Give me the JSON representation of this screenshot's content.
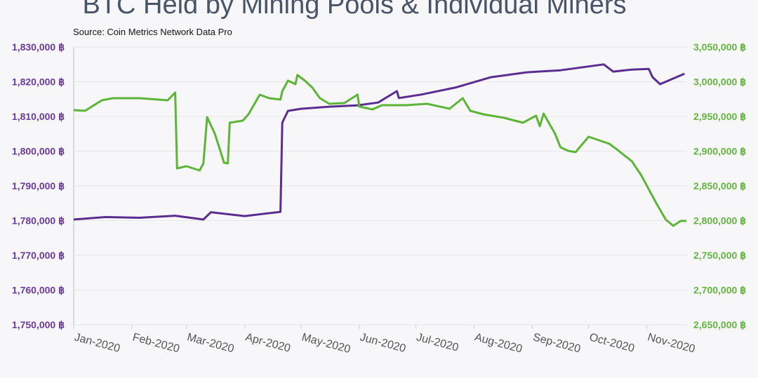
{
  "chart_data": {
    "type": "line",
    "title": "BTC Held by Mining Pools & Individual Miners",
    "subtitle": "Source: Coin Metrics Network Data Pro",
    "x_unit": "day of 2020 (0 = Jan 1)",
    "x_tick_labels": [
      "Jan-2020",
      "Feb-2020",
      "Mar-2020",
      "Apr-2020",
      "May-2020",
      "Jun-2020",
      "Jul-2020",
      "Aug-2020",
      "Sep-2020",
      "Oct-2020",
      "Nov-2020"
    ],
    "x_tick_days": [
      0,
      31,
      60,
      91,
      121,
      152,
      182,
      213,
      244,
      274,
      305
    ],
    "xlim": [
      0,
      326
    ],
    "left_axis": {
      "ylim": [
        1750000,
        1830000
      ],
      "ticks": [
        "1,750,000 ฿",
        "1,760,000 ฿",
        "1,770,000 ฿",
        "1,780,000 ฿",
        "1,790,000 ฿",
        "1,800,000 ฿",
        "1,810,000 ฿",
        "1,820,000 ฿",
        "1,830,000 ฿"
      ],
      "color": "#5b2d91"
    },
    "right_axis": {
      "ylim": [
        2650000,
        3050000
      ],
      "ticks": [
        "2,650,000 ฿",
        "2,700,000 ฿",
        "2,750,000 ฿",
        "2,800,000 ฿",
        "2,850,000 ฿",
        "2,900,000 ฿",
        "2,950,000 ฿",
        "3,000,000 ฿",
        "3,050,000 ฿"
      ],
      "color": "#5cb536"
    },
    "grid": true,
    "series": [
      {
        "name": "Mining Pools",
        "axis": "left",
        "color": "#5b2d91",
        "x": [
          0,
          17,
          35,
          54,
          69,
          73,
          91,
          110,
          111,
          114,
          121,
          136,
          151,
          162,
          172,
          173,
          185,
          203,
          222,
          241,
          259,
          282,
          287,
          297,
          306,
          308,
          312,
          325
        ],
        "y": [
          1780300,
          1781000,
          1780800,
          1781400,
          1780300,
          1782400,
          1781300,
          1782500,
          1808200,
          1811600,
          1812200,
          1812800,
          1813200,
          1814000,
          1817300,
          1815300,
          1816300,
          1818300,
          1821300,
          1822700,
          1823300,
          1825000,
          1822900,
          1823500,
          1823700,
          1821300,
          1819300,
          1822300
        ]
      },
      {
        "name": "Individual Miners",
        "axis": "right",
        "color": "#5cb536",
        "x": [
          0,
          6,
          15,
          21,
          35,
          50,
          54,
          55,
          60,
          67,
          69,
          71,
          75,
          78,
          80,
          82,
          83,
          90,
          93,
          99,
          104,
          110,
          111,
          114,
          118,
          119,
          123,
          127,
          131,
          136,
          144,
          151,
          152,
          159,
          164,
          177,
          188,
          200,
          207,
          211,
          218,
          229,
          239,
          246,
          248,
          250,
          256,
          259,
          263,
          267,
          274,
          285,
          289,
          297,
          302,
          310,
          315,
          319,
          323,
          326
        ],
        "y": [
          2959100,
          2958100,
          2973200,
          2976300,
          2976300,
          2973200,
          2984300,
          2875200,
          2878300,
          2872200,
          2882300,
          2949000,
          2925800,
          2900500,
          2883300,
          2882300,
          2940900,
          2943900,
          2953000,
          2981300,
          2976300,
          2974200,
          2986400,
          3001500,
          2996500,
          3009600,
          3001500,
          2991400,
          2976300,
          2968200,
          2969200,
          2981300,
          2964100,
          2960100,
          2966200,
          2966200,
          2968200,
          2961100,
          2976300,
          2958100,
          2953000,
          2948000,
          2940900,
          2951000,
          2935900,
          2954000,
          2925800,
          2905600,
          2900500,
          2898500,
          2920700,
          2910600,
          2902500,
          2885400,
          2865200,
          2824700,
          2801500,
          2792400,
          2799500,
          2799500
        ]
      }
    ]
  }
}
